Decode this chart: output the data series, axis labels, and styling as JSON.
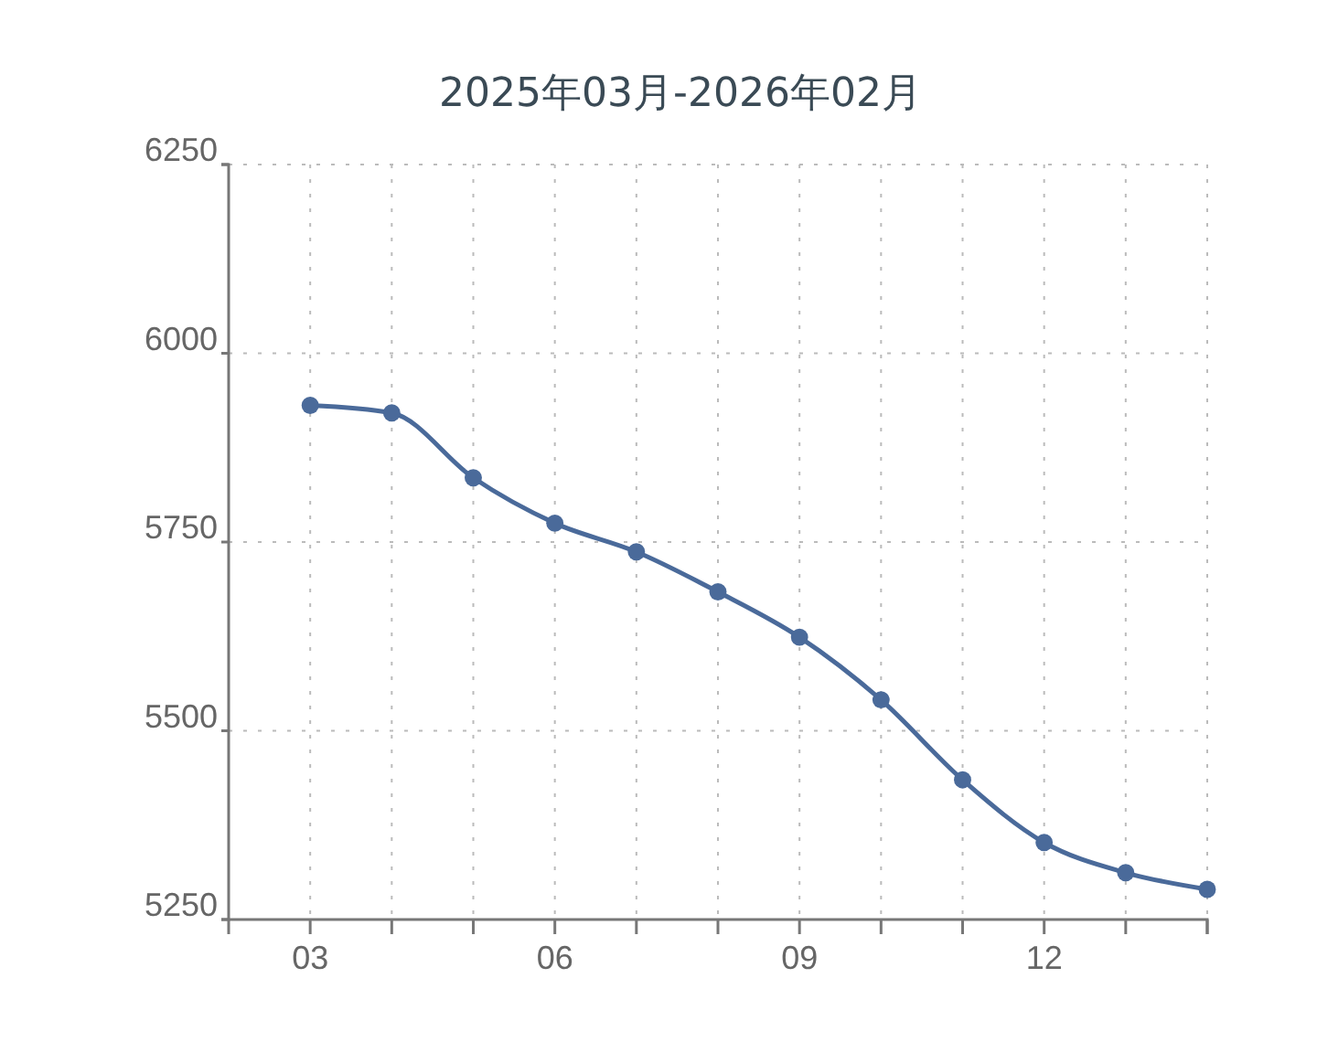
{
  "chart_data": {
    "type": "line",
    "title": "2025年03月-2026年02月",
    "categories": [
      "03",
      null,
      null,
      "06",
      null,
      null,
      "09",
      null,
      null,
      "12",
      null,
      null
    ],
    "series": [
      {
        "color": "#4a6a9a",
        "values": [
          5931,
          5921,
          5835,
          5775,
          5737,
          5684,
          5624,
          5541,
          5435,
          5352,
          5312,
          5290
        ]
      }
    ],
    "ylim": [
      5250,
      6250
    ],
    "yticks": [
      5250,
      5500,
      5750,
      6000,
      6250
    ],
    "grid": true,
    "marker": "circle",
    "line_style": "solid"
  }
}
